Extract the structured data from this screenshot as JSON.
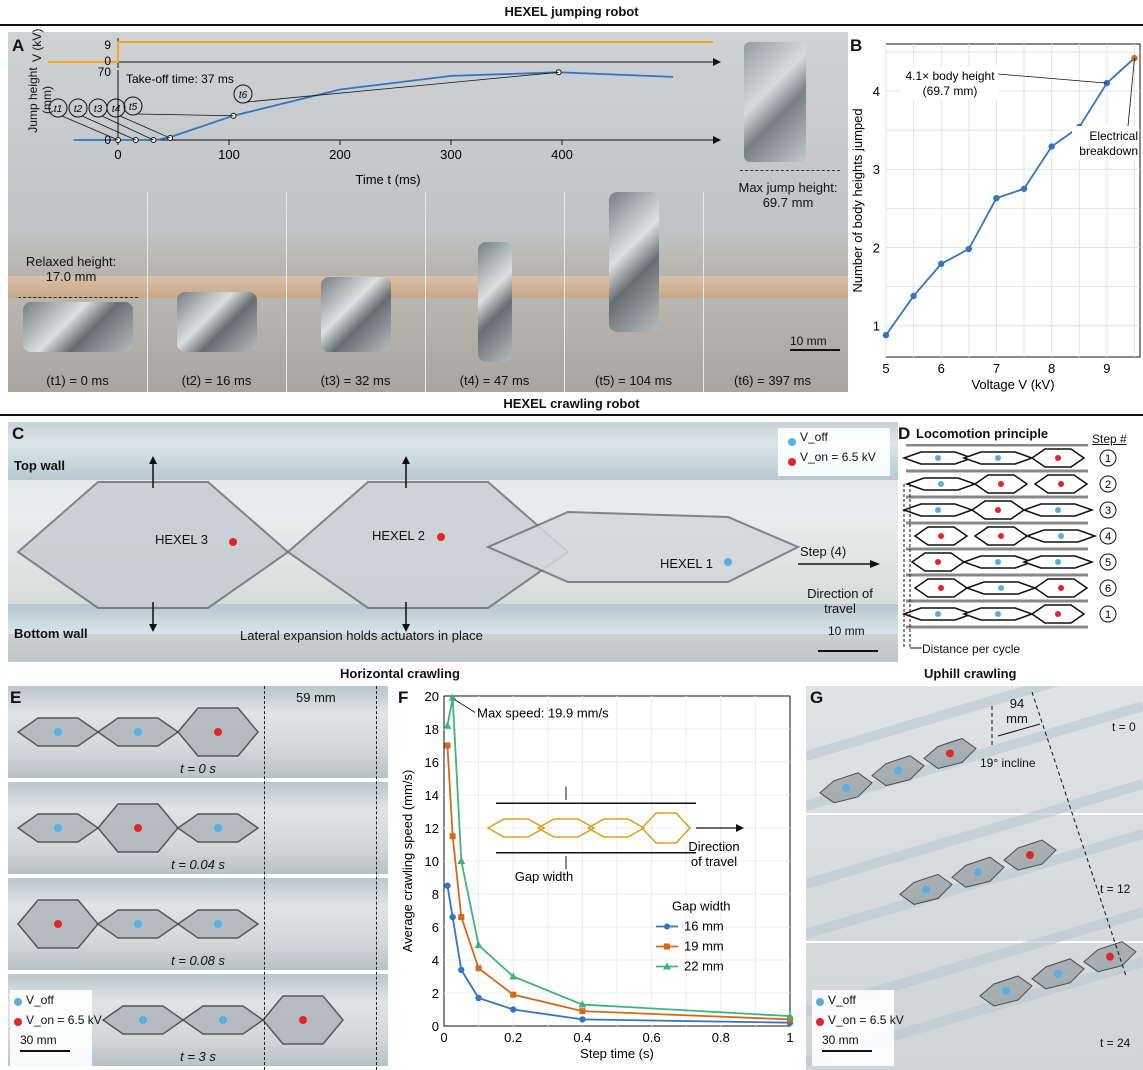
{
  "titles": {
    "jumping": "HEXEL jumping robot",
    "crawling": "HEXEL crawling robot",
    "horizontal": "Horizontal crawling",
    "uphill": "Uphill crawling"
  },
  "panel_labels": {
    "A": "A",
    "B": "B",
    "C": "C",
    "D": "D",
    "E": "E",
    "F": "F",
    "G": "G"
  },
  "panelA": {
    "v_axis_label": "V (kV)",
    "v_ticks": [
      "9",
      "0"
    ],
    "jump_axis_label": "Jump height (mm)",
    "jump_ticks": [
      "70",
      "0"
    ],
    "takeoff": "Take-off time: 37 ms",
    "time_axis_label": "Time t (ms)",
    "time_ticks": [
      "0",
      "100",
      "200",
      "300",
      "400"
    ],
    "markers": [
      "t1",
      "t2",
      "t3",
      "t4",
      "t5",
      "t6"
    ],
    "max_jump": "Max jump height: 69.7 mm",
    "relaxed": "Relaxed height: 17.0 mm",
    "scale": "10 mm",
    "frames": [
      "(t1) = 0 ms",
      "(t2) = 16 ms",
      "(t3) = 32 ms",
      "(t4) = 47 ms",
      "(t5) = 104 ms",
      "(t6) = 397 ms"
    ]
  },
  "colors": {
    "voltage": "#f2a81d",
    "jump": "#3575c0",
    "blue_dot": "#5aaee0",
    "red_dot": "#e0262b",
    "orange": "#d46a17",
    "green": "#3fb37f"
  },
  "panelC": {
    "legend_off": "V_off",
    "legend_on": "V_on = 6.5 kV",
    "top_wall": "Top wall",
    "bottom_wall": "Bottom wall",
    "hexel3": "HEXEL 3",
    "hexel2": "HEXEL 2",
    "hexel1": "HEXEL 1",
    "step": "Step (4)",
    "direction": "Direction of travel",
    "lateral": "Lateral expansion holds actuators in place",
    "scale": "10 mm"
  },
  "panelD": {
    "title": "Locomotion principle",
    "step_header": "Step #",
    "steps": [
      "1",
      "2",
      "3",
      "4",
      "5",
      "6",
      "1"
    ],
    "distance": "Distance per cycle"
  },
  "panelE": {
    "distance": "59 mm",
    "times": [
      "t = 0 s",
      "t = 0.04 s",
      "t = 0.08 s",
      "t = 3 s"
    ],
    "legend_off": "V_off",
    "legend_on": "V_on = 6.5 kV",
    "scale": "30 mm"
  },
  "panelG": {
    "distance": "94 mm",
    "incline": "19° incline",
    "times": [
      "t = 0",
      "t = 12",
      "t = 24"
    ],
    "legend_off": "V_off",
    "legend_on": "V_on = 6.5 kV",
    "scale": "30 mm"
  },
  "chart_data": [
    {
      "type": "line",
      "panel": "A",
      "x": [
        0,
        16,
        32,
        37,
        47,
        104,
        200,
        300,
        397,
        500
      ],
      "series": [
        {
          "name": "Jump height",
          "values": [
            0,
            0,
            0,
            0.5,
            3,
            25,
            52,
            66,
            69.7,
            65
          ]
        }
      ],
      "voltage": {
        "off_before": 0,
        "on_after": 9
      },
      "xlabel": "Time t (ms)",
      "ylabel": "Jump height (mm)",
      "xlim": [
        -40,
        510
      ],
      "ylim": [
        0,
        70
      ]
    },
    {
      "type": "line",
      "panel": "B",
      "x": [
        5,
        5.5,
        6,
        6.5,
        7,
        7.5,
        8,
        8.5,
        9,
        9.5
      ],
      "series": [
        {
          "values": [
            0.88,
            1.38,
            1.79,
            1.98,
            2.63,
            2.75,
            3.29,
            3.54,
            4.1,
            4.42
          ]
        }
      ],
      "xlabel": "Voltage V (kV)",
      "ylabel": "Number of body heights jumped",
      "xlim": [
        5,
        9.6
      ],
      "ylim": [
        0.6,
        4.6
      ],
      "x_ticks": [
        "5",
        "6",
        "7",
        "8",
        "9"
      ],
      "y_ticks": [
        "1",
        "2",
        "3",
        "4"
      ],
      "annotations": [
        "4.1× body height (69.7 mm)",
        "Electrical breakdown"
      ]
    },
    {
      "type": "line",
      "panel": "F",
      "x": [
        0.01,
        0.025,
        0.05,
        0.1,
        0.2,
        0.4,
        1.0
      ],
      "series": [
        {
          "name": "16 mm",
          "values": [
            8.5,
            6.6,
            3.4,
            1.7,
            1.0,
            0.4,
            0.2
          ]
        },
        {
          "name": "19 mm",
          "values": [
            17.0,
            11.5,
            6.6,
            3.5,
            1.9,
            0.9,
            0.4
          ]
        },
        {
          "name": "22 mm",
          "values": [
            18.2,
            19.9,
            10.0,
            4.9,
            3.0,
            1.3,
            0.6
          ]
        }
      ],
      "xlabel": "Step time (s)",
      "ylabel": "Average crawling speed (mm/s)",
      "xlim": [
        0,
        1
      ],
      "ylim": [
        0,
        20
      ],
      "x_ticks": [
        "0",
        "0.2",
        "0.4",
        "0.6",
        "0.8",
        "1"
      ],
      "y_ticks": [
        "0",
        "2",
        "4",
        "6",
        "8",
        "10",
        "12",
        "14",
        "16",
        "18",
        "20"
      ],
      "legend_title": "Gap width",
      "annotations": [
        "Max speed: 19.9 mm/s",
        "Gap width",
        "Direction of travel"
      ]
    }
  ]
}
